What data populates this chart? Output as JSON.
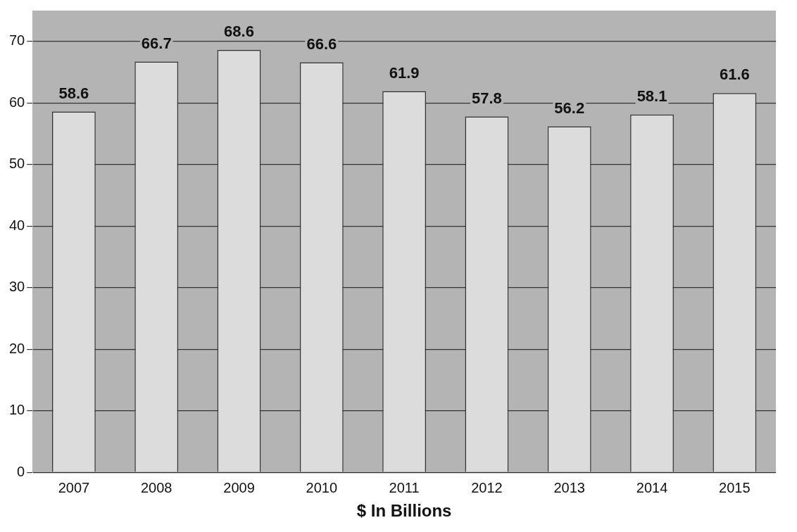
{
  "chart_data": {
    "type": "bar",
    "xlabel": "$ In Billions",
    "categories": [
      "2007",
      "2008",
      "2009",
      "2010",
      "2011",
      "2012",
      "2013",
      "2014",
      "2015"
    ],
    "values": [
      58.6,
      66.7,
      68.6,
      66.6,
      61.9,
      57.8,
      56.2,
      58.1,
      61.6
    ],
    "color": "#dcdcdc",
    "ylim": [
      0,
      75
    ],
    "yticks": [
      0,
      10,
      20,
      30,
      40,
      50,
      60,
      70
    ],
    "grid": "y",
    "data_labels": true
  }
}
